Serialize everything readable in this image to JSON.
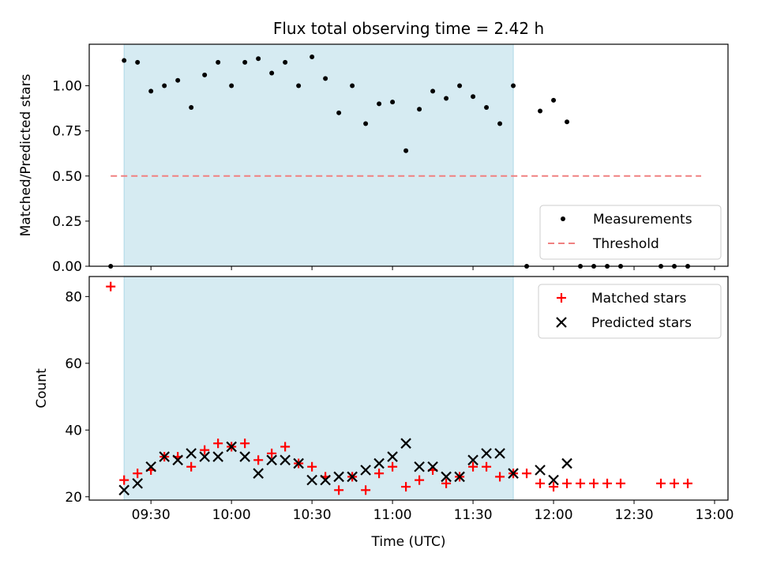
{
  "chart_data": [
    {
      "type": "scatter",
      "title": "Flux total observing time = 2.42 h",
      "xlabel": "",
      "ylabel": "Matched/Predicted stars",
      "xlim": [
        "09:07",
        "13:05"
      ],
      "ylim": [
        0,
        1.23
      ],
      "yticks": [
        "0.00",
        "0.25",
        "0.50",
        "0.75",
        "1.00"
      ],
      "shaded_span": [
        "09:20",
        "11:45"
      ],
      "legend_position": "lower right",
      "colors": {
        "measurements": "#000000",
        "threshold": "#f08080",
        "shade": "#add8e6"
      },
      "series": [
        {
          "name": "Measurements",
          "marker": "dot",
          "x": [
            "09:15",
            "09:20",
            "09:25",
            "09:30",
            "09:35",
            "09:40",
            "09:45",
            "09:50",
            "09:55",
            "10:00",
            "10:05",
            "10:10",
            "10:15",
            "10:20",
            "10:25",
            "10:30",
            "10:35",
            "10:40",
            "10:45",
            "10:50",
            "10:55",
            "11:00",
            "11:05",
            "11:10",
            "11:15",
            "11:20",
            "11:25",
            "11:30",
            "11:35",
            "11:40",
            "11:45",
            "11:50",
            "11:55",
            "12:00",
            "12:05",
            "12:10",
            "12:15",
            "12:20",
            "12:25",
            "12:40",
            "12:45",
            "12:50"
          ],
          "y": [
            0.0,
            1.14,
            1.13,
            0.97,
            1.0,
            1.03,
            0.88,
            1.06,
            1.13,
            1.0,
            1.13,
            1.15,
            1.07,
            1.13,
            1.0,
            1.16,
            1.04,
            0.85,
            1.0,
            0.79,
            0.9,
            0.91,
            0.64,
            0.87,
            0.97,
            0.93,
            1.0,
            0.94,
            0.88,
            0.79,
            1.0,
            0.0,
            0.86,
            0.92,
            0.8,
            0.0,
            0.0,
            0.0,
            0.0,
            0.0,
            0.0,
            0.0
          ]
        },
        {
          "name": "Threshold",
          "marker": "dashed-line",
          "x": [
            "09:15",
            "12:55"
          ],
          "y": [
            0.5,
            0.5
          ]
        }
      ]
    },
    {
      "type": "scatter",
      "xlabel": "Time (UTC)",
      "ylabel": "Count",
      "xlim": [
        "09:07",
        "13:05"
      ],
      "xticks": [
        "09:30",
        "10:00",
        "10:30",
        "11:00",
        "11:30",
        "12:00",
        "12:30",
        "13:00"
      ],
      "ylim": [
        19,
        86
      ],
      "yticks": [
        "20",
        "40",
        "60",
        "80"
      ],
      "shaded_span": [
        "09:20",
        "11:45"
      ],
      "legend_position": "upper right",
      "colors": {
        "matched": "#ff0000",
        "predicted": "#000000",
        "shade": "#add8e6"
      },
      "series": [
        {
          "name": "Matched stars",
          "marker": "plus",
          "x": [
            "09:15",
            "09:20",
            "09:25",
            "09:30",
            "09:35",
            "09:40",
            "09:45",
            "09:50",
            "09:55",
            "10:00",
            "10:05",
            "10:10",
            "10:15",
            "10:20",
            "10:25",
            "10:30",
            "10:35",
            "10:40",
            "10:45",
            "10:50",
            "10:55",
            "11:00",
            "11:05",
            "11:10",
            "11:15",
            "11:20",
            "11:25",
            "11:30",
            "11:35",
            "11:40",
            "11:45",
            "11:50",
            "11:55",
            "12:00",
            "12:05",
            "12:10",
            "12:15",
            "12:20",
            "12:25",
            "12:40",
            "12:45",
            "12:50"
          ],
          "y": [
            83,
            25,
            27,
            28,
            32,
            32,
            29,
            34,
            36,
            35,
            36,
            31,
            33,
            35,
            30,
            29,
            26,
            22,
            26,
            22,
            27,
            29,
            23,
            25,
            28,
            24,
            26,
            29,
            29,
            26,
            27,
            27,
            24,
            23,
            24,
            24,
            24,
            24,
            24,
            24,
            24,
            24
          ]
        },
        {
          "name": "Predicted stars",
          "marker": "x",
          "x": [
            "09:20",
            "09:25",
            "09:30",
            "09:35",
            "09:40",
            "09:45",
            "09:50",
            "09:55",
            "10:00",
            "10:05",
            "10:10",
            "10:15",
            "10:20",
            "10:25",
            "10:30",
            "10:35",
            "10:40",
            "10:45",
            "10:50",
            "10:55",
            "11:00",
            "11:05",
            "11:10",
            "11:15",
            "11:20",
            "11:25",
            "11:30",
            "11:35",
            "11:40",
            "11:45",
            "11:55",
            "12:00",
            "12:05"
          ],
          "y": [
            22,
            24,
            29,
            32,
            31,
            33,
            32,
            32,
            35,
            32,
            27,
            31,
            31,
            30,
            25,
            25,
            26,
            26,
            28,
            30,
            32,
            36,
            29,
            29,
            26,
            26,
            31,
            33,
            33,
            27,
            28,
            25,
            30
          ]
        }
      ]
    }
  ]
}
